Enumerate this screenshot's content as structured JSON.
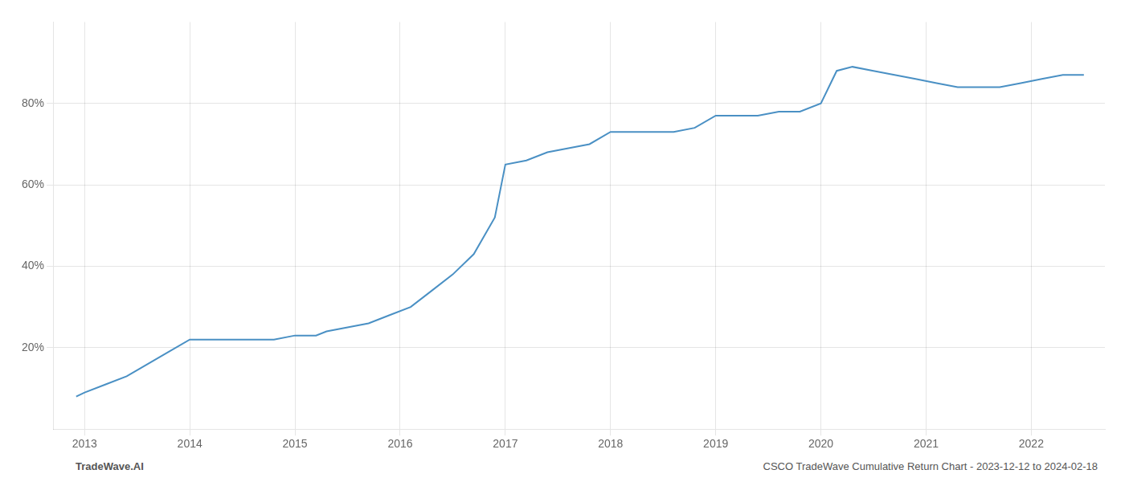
{
  "chart_data": {
    "type": "line",
    "x": [
      2012.92,
      2013.0,
      2013.2,
      2013.4,
      2013.6,
      2013.8,
      2014.0,
      2014.2,
      2014.4,
      2014.6,
      2014.8,
      2015.0,
      2015.1,
      2015.2,
      2015.3,
      2015.5,
      2015.7,
      2015.9,
      2016.1,
      2016.3,
      2016.5,
      2016.7,
      2016.9,
      2017.0,
      2017.2,
      2017.4,
      2017.6,
      2017.8,
      2018.0,
      2018.2,
      2018.4,
      2018.6,
      2018.8,
      2019.0,
      2019.2,
      2019.4,
      2019.6,
      2019.8,
      2020.0,
      2020.15,
      2020.3,
      2020.5,
      2020.7,
      2020.9,
      2021.1,
      2021.3,
      2021.5,
      2021.7,
      2021.9,
      2022.1,
      2022.3,
      2022.5
    ],
    "values": [
      8,
      9,
      11,
      13,
      16,
      19,
      22,
      22,
      22,
      22,
      22,
      23,
      23,
      23,
      24,
      25,
      26,
      28,
      30,
      34,
      38,
      43,
      52,
      65,
      66,
      68,
      69,
      70,
      73,
      73,
      73,
      73,
      74,
      77,
      77,
      77,
      78,
      78,
      80,
      88,
      89,
      88,
      87,
      86,
      85,
      84,
      84,
      84,
      85,
      86,
      87,
      87
    ],
    "color": "#4a90c4",
    "xlim": [
      2012.7,
      2022.7
    ],
    "xticks": [
      2013,
      2014,
      2015,
      2016,
      2017,
      2018,
      2019,
      2020,
      2021,
      2022
    ],
    "ylim": [
      0,
      100
    ],
    "yticks": [
      {
        "value": 20,
        "label": "20%"
      },
      {
        "value": 40,
        "label": "40%"
      },
      {
        "value": 60,
        "label": "60%"
      },
      {
        "value": 80,
        "label": "80%"
      }
    ],
    "grid": true,
    "annotations": [
      "TradeWave.AI",
      "CSCO TradeWave Cumulative Return Chart - 2023-12-12 to 2024-02-18"
    ]
  }
}
